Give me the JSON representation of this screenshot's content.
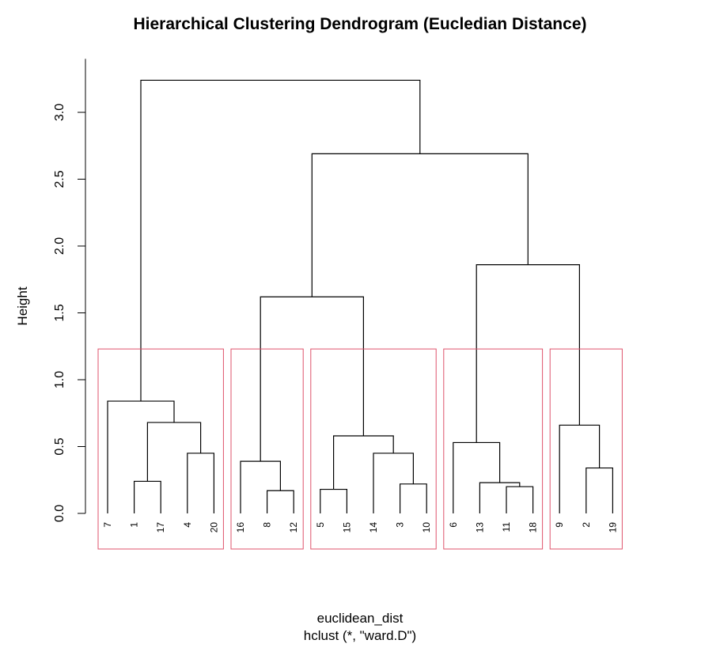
{
  "chart_data": {
    "type": "dendrogram",
    "title": "Hierarchical Clustering Dendrogram (Eucledian Distance)",
    "xlabel": "euclidean_dist",
    "sublabel": "hclust (*, \"ward.D\")",
    "ylabel": "Height",
    "ylim": [
      0,
      3.3
    ],
    "yticks": [
      "0.0",
      "0.5",
      "1.0",
      "1.5",
      "2.0",
      "2.5",
      "3.0"
    ],
    "leaf_order": [
      "7",
      "1",
      "17",
      "4",
      "20",
      "16",
      "8",
      "12",
      "5",
      "15",
      "14",
      "3",
      "10",
      "6",
      "13",
      "11",
      "18",
      "9",
      "2",
      "19"
    ],
    "merges": [
      {
        "left": "1",
        "right": "17",
        "height": 0.24
      },
      {
        "left": "4",
        "right": "20",
        "height": 0.45
      },
      {
        "left": "#0",
        "right": "#1",
        "height": 0.68
      },
      {
        "left": "7",
        "right": "#2",
        "height": 0.84
      },
      {
        "left": "8",
        "right": "12",
        "height": 0.17
      },
      {
        "left": "16",
        "right": "#4",
        "height": 0.39
      },
      {
        "left": "5",
        "right": "15",
        "height": 0.18
      },
      {
        "left": "3",
        "right": "10",
        "height": 0.22
      },
      {
        "left": "14",
        "right": "#7",
        "height": 0.45
      },
      {
        "left": "#6",
        "right": "#8",
        "height": 0.58
      },
      {
        "left": "#5",
        "right": "#9",
        "height": 1.62
      },
      {
        "left": "11",
        "right": "18",
        "height": 0.2
      },
      {
        "left": "13",
        "right": "#11",
        "height": 0.23
      },
      {
        "left": "6",
        "right": "#12",
        "height": 0.53
      },
      {
        "left": "2",
        "right": "19",
        "height": 0.34
      },
      {
        "left": "9",
        "right": "#14",
        "height": 0.66
      },
      {
        "left": "#13",
        "right": "#15",
        "height": 1.86
      },
      {
        "left": "#10",
        "right": "#16",
        "height": 2.69
      },
      {
        "left": "#3",
        "right": "#17",
        "height": 3.24
      }
    ],
    "cut_height": 1.23,
    "clusters": [
      {
        "first": 0,
        "last": 4
      },
      {
        "first": 5,
        "last": 7
      },
      {
        "first": 8,
        "last": 12
      },
      {
        "first": 13,
        "last": 16
      },
      {
        "first": 17,
        "last": 19
      }
    ],
    "cluster_color": "#df536b",
    "link_color": "#000000"
  }
}
